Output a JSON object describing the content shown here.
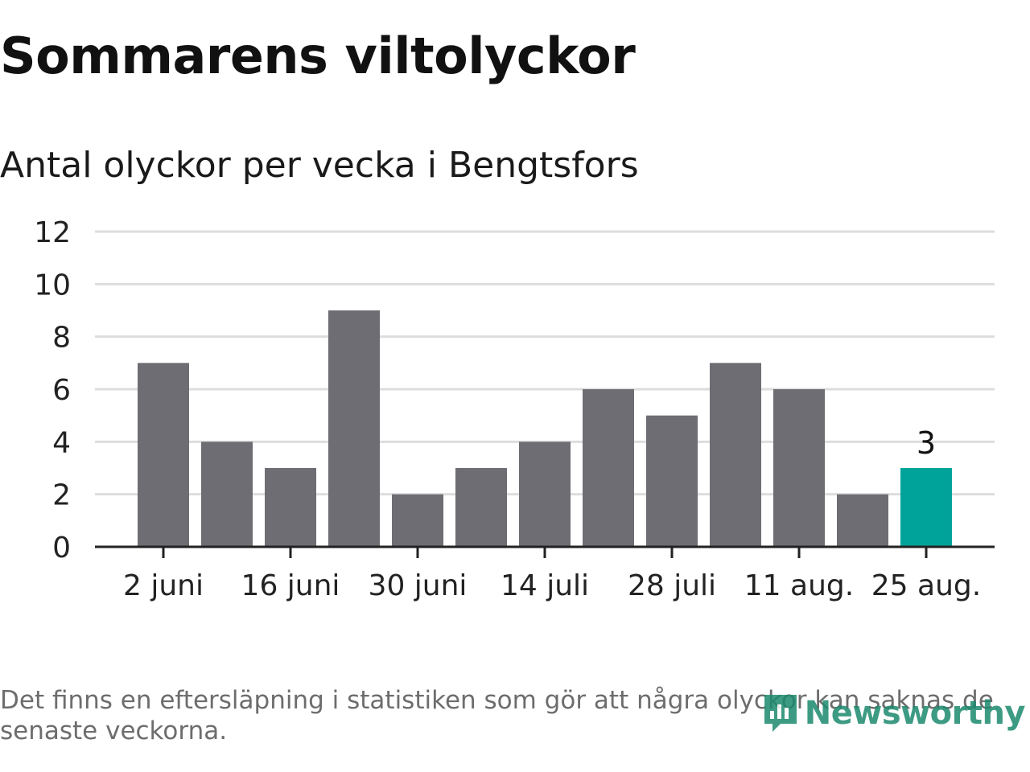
{
  "title": "Sommarens viltolyckor",
  "subtitle": "Antal olyckor per vecka i Bengtsfors",
  "note": "Det finns en eftersläpning i statistiken som gör att några olyckor kan saknas de senaste veckorna.",
  "logo": {
    "text": "Newsworthy",
    "icon": "newsworthy-logo-icon"
  },
  "colors": {
    "bar": "#6e6d73",
    "highlight": "#00a39a",
    "grid": "#dddddd",
    "axis": "#222222"
  },
  "chart_data": {
    "type": "bar",
    "title": "Sommarens viltolyckor",
    "subtitle": "Antal olyckor per vecka i Bengtsfors",
    "xlabel": "",
    "ylabel": "",
    "values": [
      7,
      4,
      3,
      9,
      2,
      3,
      4,
      6,
      5,
      7,
      6,
      2,
      3
    ],
    "highlight_index": 12,
    "highlight_label": "3",
    "x_tick_labels": [
      {
        "index": 0,
        "label": "2 juni"
      },
      {
        "index": 2,
        "label": "16 juni"
      },
      {
        "index": 4,
        "label": "30 juni"
      },
      {
        "index": 6,
        "label": "14 juli"
      },
      {
        "index": 8,
        "label": "28 juli"
      },
      {
        "index": 10,
        "label": "11 aug."
      },
      {
        "index": 12,
        "label": "25 aug."
      }
    ],
    "y_ticks": [
      0,
      2,
      4,
      6,
      8,
      10,
      12
    ],
    "ylim": [
      0,
      12
    ],
    "grid": true
  }
}
